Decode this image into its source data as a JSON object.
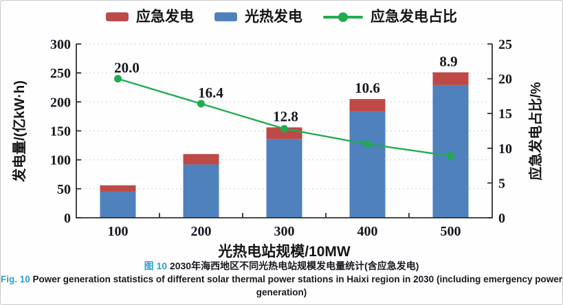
{
  "style": {
    "bar_blue": "#4f81bd",
    "bar_red": "#bd4a47",
    "line_green": "#21ab50",
    "axis_color": "#2e2e2e",
    "grid_color": "#d4d4d4",
    "text_color": "#16161e",
    "caption_accent": "#2e9fd4"
  },
  "legend": {
    "items": [
      {
        "label": "应急发电",
        "type": "swatch",
        "color": "#bd4a47"
      },
      {
        "label": "光热发电",
        "type": "swatch",
        "color": "#4f81bd"
      },
      {
        "label": "应急发电占比",
        "type": "line-marker",
        "color": "#21ab50"
      }
    ]
  },
  "chart_data": {
    "type": "bar+line",
    "categories": [
      "100",
      "200",
      "300",
      "400",
      "500"
    ],
    "series": [
      {
        "name": "光热发电",
        "type": "bar",
        "stack": "total",
        "color": "#4f81bd",
        "values": [
          45,
          92,
          136,
          183,
          229
        ]
      },
      {
        "name": "应急发电",
        "type": "bar",
        "stack": "total",
        "color": "#bd4a47",
        "values": [
          11,
          18,
          20,
          22,
          22
        ]
      },
      {
        "name": "应急发电占比",
        "type": "line",
        "axis": "right",
        "color": "#21ab50",
        "values": [
          20.0,
          16.4,
          12.8,
          10.6,
          8.9
        ],
        "labels": [
          "20.0",
          "16.4",
          "12.8",
          "10.6",
          "8.9"
        ]
      }
    ],
    "xlabel": "光热电站规模/10MW",
    "ylabel_left": "发电量/(亿kW·h)",
    "ylabel_right": "应急发电占比/%",
    "ylim_left": [
      0,
      300
    ],
    "yticks_left": [
      0,
      50,
      100,
      150,
      200,
      250,
      300
    ],
    "ylim_right": [
      0,
      25
    ],
    "yticks_right": [
      0,
      5,
      10,
      15,
      20,
      25
    ],
    "grid": "horizontal-dashed",
    "legend_position": "top",
    "stacked_totals": [
      56,
      110,
      156,
      205,
      251
    ]
  },
  "caption": {
    "zh_prefix": "图 10",
    "zh_text": "2030年海西地区不同光热电站规模发电量统计(含应急发电)",
    "en_prefix": "Fig. 10",
    "en_text": "Power generation statistics of different solar thermal power stations in Haixi region in 2030 (including emergency power generation)"
  }
}
